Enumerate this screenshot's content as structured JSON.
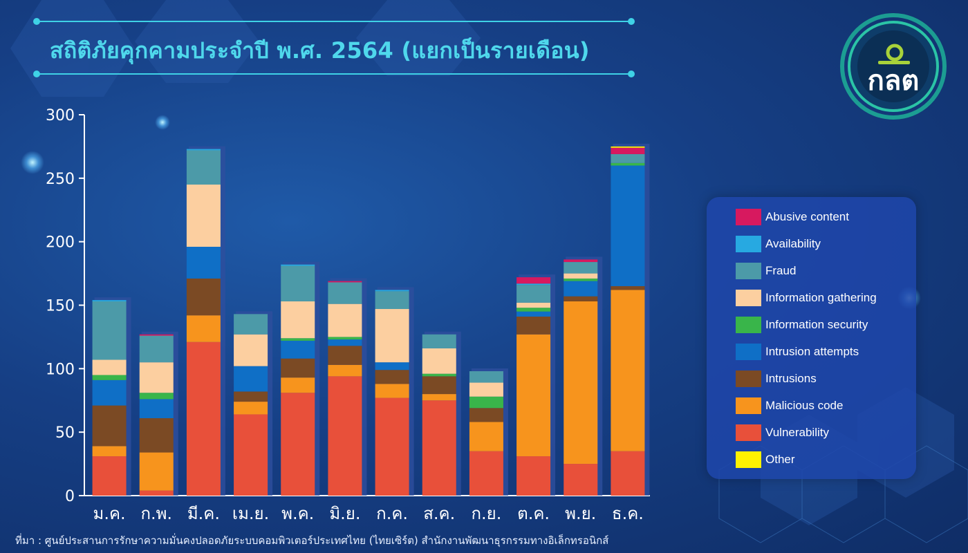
{
  "title": "สถิติภัยคุกคามประจำปี พ.ศ. 2564 (แยกเป็นรายเดือน)",
  "logo_text": "กลต",
  "source_note": "ที่มา : ศูนย์ประสานการรักษาความมั่นคงปลอดภัยระบบคอมพิวเตอร์ประเทศไทย (ไทยเซิร์ต) สำนักงานพัฒนาธุรกรรมทางอิเล็กทรอนิกส์",
  "colors": {
    "background": "#163f85",
    "title": "#4fd8ec",
    "legend_bg": "#1e46aa"
  },
  "chart_data": {
    "type": "bar",
    "stacked": true,
    "title": "สถิติภัยคุกคามประจำปี พ.ศ. 2564 (แยกเป็นรายเดือน)",
    "xlabel": "",
    "ylabel": "",
    "ylim": [
      0,
      300
    ],
    "yticks": [
      0,
      50,
      100,
      150,
      200,
      250,
      300
    ],
    "grid": false,
    "legend_position": "right",
    "categories": [
      "ม.ค.",
      "ก.พ.",
      "มี.ค.",
      "เม.ย.",
      "พ.ค.",
      "มิ.ย.",
      "ก.ค.",
      "ส.ค.",
      "ก.ย.",
      "ต.ค.",
      "พ.ย.",
      "ธ.ค."
    ],
    "series": [
      {
        "name": "Vulnerability",
        "color": "#e8503a",
        "values": [
          31,
          4,
          121,
          64,
          81,
          94,
          77,
          75,
          35,
          31,
          25,
          35
        ]
      },
      {
        "name": "Malicious code",
        "color": "#f7941d",
        "values": [
          8,
          30,
          21,
          10,
          12,
          9,
          11,
          5,
          23,
          96,
          128,
          127
        ]
      },
      {
        "name": "Intrusions",
        "color": "#7b4a24",
        "values": [
          32,
          27,
          29,
          8,
          15,
          15,
          11,
          14,
          11,
          14,
          4,
          3
        ]
      },
      {
        "name": "Intrusion attempts",
        "color": "#0f6fc6",
        "values": [
          20,
          15,
          25,
          20,
          14,
          5,
          6,
          0,
          0,
          4,
          12,
          95
        ]
      },
      {
        "name": "Information security",
        "color": "#39b54a",
        "values": [
          4,
          5,
          0,
          0,
          2,
          2,
          0,
          2,
          9,
          3,
          2,
          2
        ]
      },
      {
        "name": "Information gathering",
        "color": "#fccfa0",
        "values": [
          12,
          24,
          49,
          25,
          29,
          26,
          42,
          20,
          11,
          4,
          4,
          0
        ]
      },
      {
        "name": "Fraud",
        "color": "#4c9aa8",
        "values": [
          46,
          21,
          27,
          16,
          28,
          17,
          14,
          11,
          9,
          14,
          9,
          7
        ]
      },
      {
        "name": "Availability",
        "color": "#27a9e1",
        "values": [
          1,
          0,
          1,
          0,
          1,
          0,
          1,
          0,
          0,
          1,
          0,
          0
        ]
      },
      {
        "name": "Abusive content",
        "color": "#d7195f",
        "values": [
          0,
          1,
          0,
          0,
          0,
          1,
          0,
          0,
          0,
          5,
          2,
          5
        ]
      },
      {
        "name": "Other",
        "color": "#fff200",
        "values": [
          0,
          0,
          0,
          0,
          0,
          0,
          0,
          0,
          0,
          0,
          0,
          1
        ]
      }
    ],
    "legend_order": [
      "Abusive content",
      "Availability",
      "Fraud",
      "Information gathering",
      "Information security",
      "Intrusion attempts",
      "Intrusions",
      "Malicious code",
      "Vulnerability",
      "Other"
    ]
  }
}
